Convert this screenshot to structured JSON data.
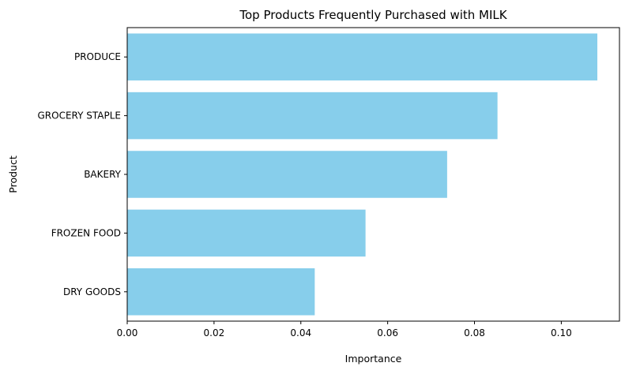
{
  "chart_data": {
    "type": "bar",
    "orientation": "horizontal",
    "title": "Top Products Frequently Purchased with MILK",
    "xlabel": "Importance",
    "ylabel": "Product",
    "categories": [
      "PRODUCE",
      "GROCERY STAPLE",
      "BAKERY",
      "FROZEN FOOD",
      "DRY GOODS"
    ],
    "values": [
      0.1083,
      0.0853,
      0.0737,
      0.0549,
      0.0432
    ],
    "xlim": [
      0,
      0.1134
    ],
    "xticks": [
      "0.00",
      "0.02",
      "0.04",
      "0.06",
      "0.08",
      "0.10"
    ],
    "bar_color": "#87CEEB",
    "grid": false,
    "legend": "none"
  }
}
